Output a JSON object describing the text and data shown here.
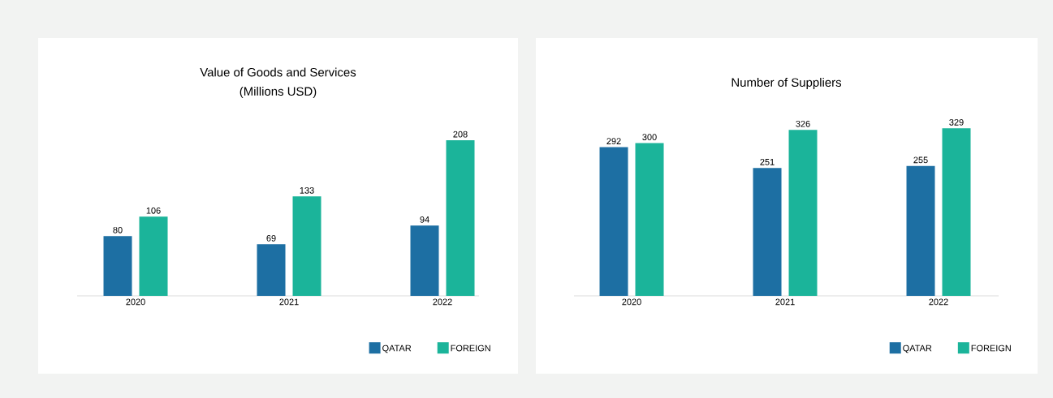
{
  "chart_data": [
    {
      "type": "bar",
      "title": "Value of Goods and Services",
      "subtitle": "(Millions USD)",
      "categories": [
        "2020",
        "2021",
        "2022"
      ],
      "series": [
        {
          "name": "QATAR",
          "color": "#1d6fa3",
          "values": [
            80,
            69,
            94
          ]
        },
        {
          "name": "FOREIGN",
          "color": "#1bb49a",
          "values": [
            106,
            133,
            208
          ]
        }
      ],
      "data_labels": true,
      "legend": "bottom right"
    },
    {
      "type": "bar",
      "title": "Number of Suppliers",
      "categories": [
        "2020",
        "2021",
        "2022"
      ],
      "series": [
        {
          "name": "QATAR",
          "color": "#1d6fa3",
          "values": [
            292,
            251,
            255
          ]
        },
        {
          "name": "FOREIGN",
          "color": "#1bb49a",
          "values": [
            300,
            326,
            329
          ]
        }
      ],
      "data_labels": true,
      "legend": "bottom right"
    }
  ]
}
